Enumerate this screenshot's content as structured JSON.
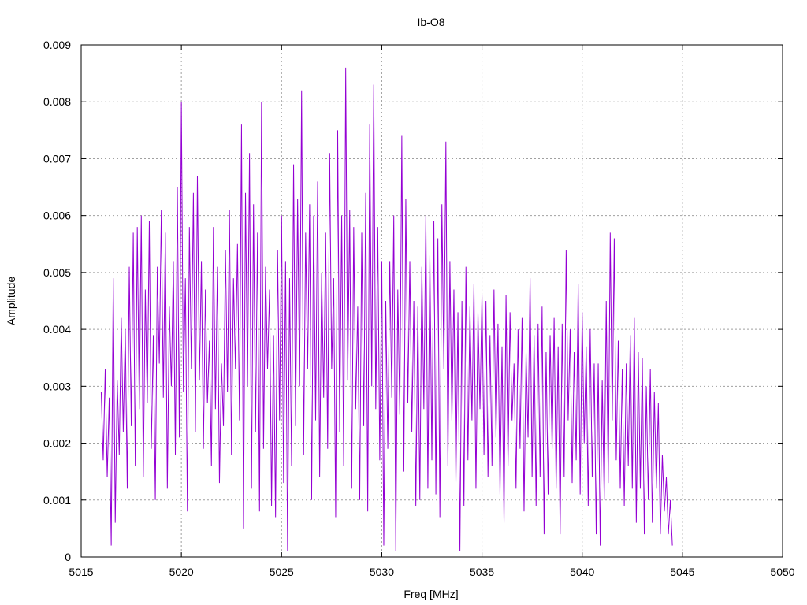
{
  "chart_data": {
    "type": "line",
    "title": "Ib-O8",
    "xlabel": "Freq [MHz]",
    "ylabel": "Amplitude",
    "xlim": [
      5015,
      5050
    ],
    "ylim": [
      0,
      0.009
    ],
    "x_ticks": [
      5015,
      5020,
      5025,
      5030,
      5035,
      5040,
      5045,
      5050
    ],
    "x_tick_labels": [
      "5015",
      "5020",
      "5025",
      "5030",
      "5035",
      "5040",
      "5045",
      "5050"
    ],
    "y_ticks": [
      0,
      0.001,
      0.002,
      0.003,
      0.004,
      0.005,
      0.006,
      0.007,
      0.008,
      0.009
    ],
    "y_tick_labels": [
      "0",
      "0.001",
      "0.002",
      "0.003",
      "0.004",
      "0.005",
      "0.006",
      "0.007",
      "0.008",
      "0.009"
    ],
    "grid": true,
    "line_color": "#9400d3",
    "series": [
      {
        "x_start": 5016.0,
        "x_step": 0.1,
        "values": [
          0.0029,
          0.0017,
          0.0033,
          0.0014,
          0.0028,
          0.0002,
          0.0049,
          0.0006,
          0.0031,
          0.0018,
          0.0042,
          0.0022,
          0.004,
          0.0012,
          0.0051,
          0.0023,
          0.0057,
          0.0016,
          0.0058,
          0.0026,
          0.006,
          0.0014,
          0.0047,
          0.0027,
          0.0059,
          0.0019,
          0.0039,
          0.001,
          0.0051,
          0.0034,
          0.0061,
          0.0028,
          0.0057,
          0.0012,
          0.0044,
          0.003,
          0.0052,
          0.0018,
          0.0065,
          0.0021,
          0.008,
          0.0029,
          0.0049,
          0.0008,
          0.0058,
          0.0033,
          0.0064,
          0.0022,
          0.0067,
          0.0031,
          0.0052,
          0.0019,
          0.0047,
          0.0027,
          0.0038,
          0.0016,
          0.0058,
          0.0026,
          0.0051,
          0.0013,
          0.0034,
          0.0023,
          0.0054,
          0.0029,
          0.0061,
          0.0018,
          0.0049,
          0.0033,
          0.0055,
          0.0024,
          0.0076,
          0.0005,
          0.0064,
          0.003,
          0.0071,
          0.0012,
          0.0062,
          0.0022,
          0.0057,
          0.0008,
          0.008,
          0.0019,
          0.0051,
          0.0033,
          0.0047,
          0.0009,
          0.0039,
          0.0007,
          0.0054,
          0.0024,
          0.006,
          0.0013,
          0.0052,
          0.0001,
          0.0049,
          0.0016,
          0.0069,
          0.0023,
          0.0063,
          0.003,
          0.0082,
          0.0018,
          0.0057,
          0.0033,
          0.0062,
          0.001,
          0.006,
          0.0024,
          0.0066,
          0.0014,
          0.005,
          0.0028,
          0.0057,
          0.0019,
          0.0071,
          0.0033,
          0.0049,
          0.0007,
          0.0075,
          0.0022,
          0.006,
          0.0016,
          0.0086,
          0.0031,
          0.0061,
          0.0012,
          0.0058,
          0.0026,
          0.0044,
          0.001,
          0.0057,
          0.0023,
          0.0064,
          0.0008,
          0.0076,
          0.003,
          0.0083,
          0.0026,
          0.0058,
          0.0017,
          0.0052,
          0.0002,
          0.0045,
          0.0019,
          0.0052,
          0.0028,
          0.006,
          0.0001,
          0.0047,
          0.0025,
          0.0074,
          0.0015,
          0.0063,
          0.0027,
          0.0052,
          0.0022,
          0.0045,
          0.0009,
          0.0044,
          0.001,
          0.0051,
          0.0026,
          0.006,
          0.0012,
          0.0053,
          0.0017,
          0.0059,
          0.0011,
          0.0056,
          0.0007,
          0.0062,
          0.0033,
          0.0073,
          0.0016,
          0.0052,
          0.0024,
          0.0047,
          0.0013,
          0.0043,
          0.0001,
          0.0045,
          0.0009,
          0.0051,
          0.0017,
          0.0044,
          0.0024,
          0.0048,
          0.0012,
          0.0043,
          0.0026,
          0.0046,
          0.0018,
          0.0045,
          0.0014,
          0.0039,
          0.0016,
          0.0047,
          0.0021,
          0.0041,
          0.0011,
          0.0037,
          0.0006,
          0.0046,
          0.0016,
          0.0043,
          0.0024,
          0.0034,
          0.0012,
          0.004,
          0.0019,
          0.0042,
          0.0008,
          0.0036,
          0.0021,
          0.0049,
          0.0014,
          0.0039,
          0.0009,
          0.0041,
          0.0014,
          0.0044,
          0.0004,
          0.0036,
          0.0011,
          0.0039,
          0.0019,
          0.0042,
          0.0012,
          0.0037,
          0.0004,
          0.0041,
          0.0014,
          0.0054,
          0.0024,
          0.004,
          0.0013,
          0.0036,
          0.0017,
          0.0048,
          0.0011,
          0.0043,
          0.002,
          0.0037,
          0.0009,
          0.004,
          0.0014,
          0.0034,
          0.0004,
          0.0034,
          0.0002,
          0.0031,
          0.001,
          0.0045,
          0.0013,
          0.0057,
          0.0024,
          0.0056,
          0.0017,
          0.0038,
          0.0012,
          0.0033,
          0.0009,
          0.0034,
          0.0016,
          0.0039,
          0.0012,
          0.0042,
          0.0006,
          0.0036,
          0.0012,
          0.0035,
          0.0004,
          0.003,
          0.001,
          0.0033,
          0.0006,
          0.0029,
          0.0012,
          0.0027,
          0.0004,
          0.0018,
          0.0008,
          0.0014,
          0.0004,
          0.001,
          0.0002
        ]
      }
    ]
  }
}
